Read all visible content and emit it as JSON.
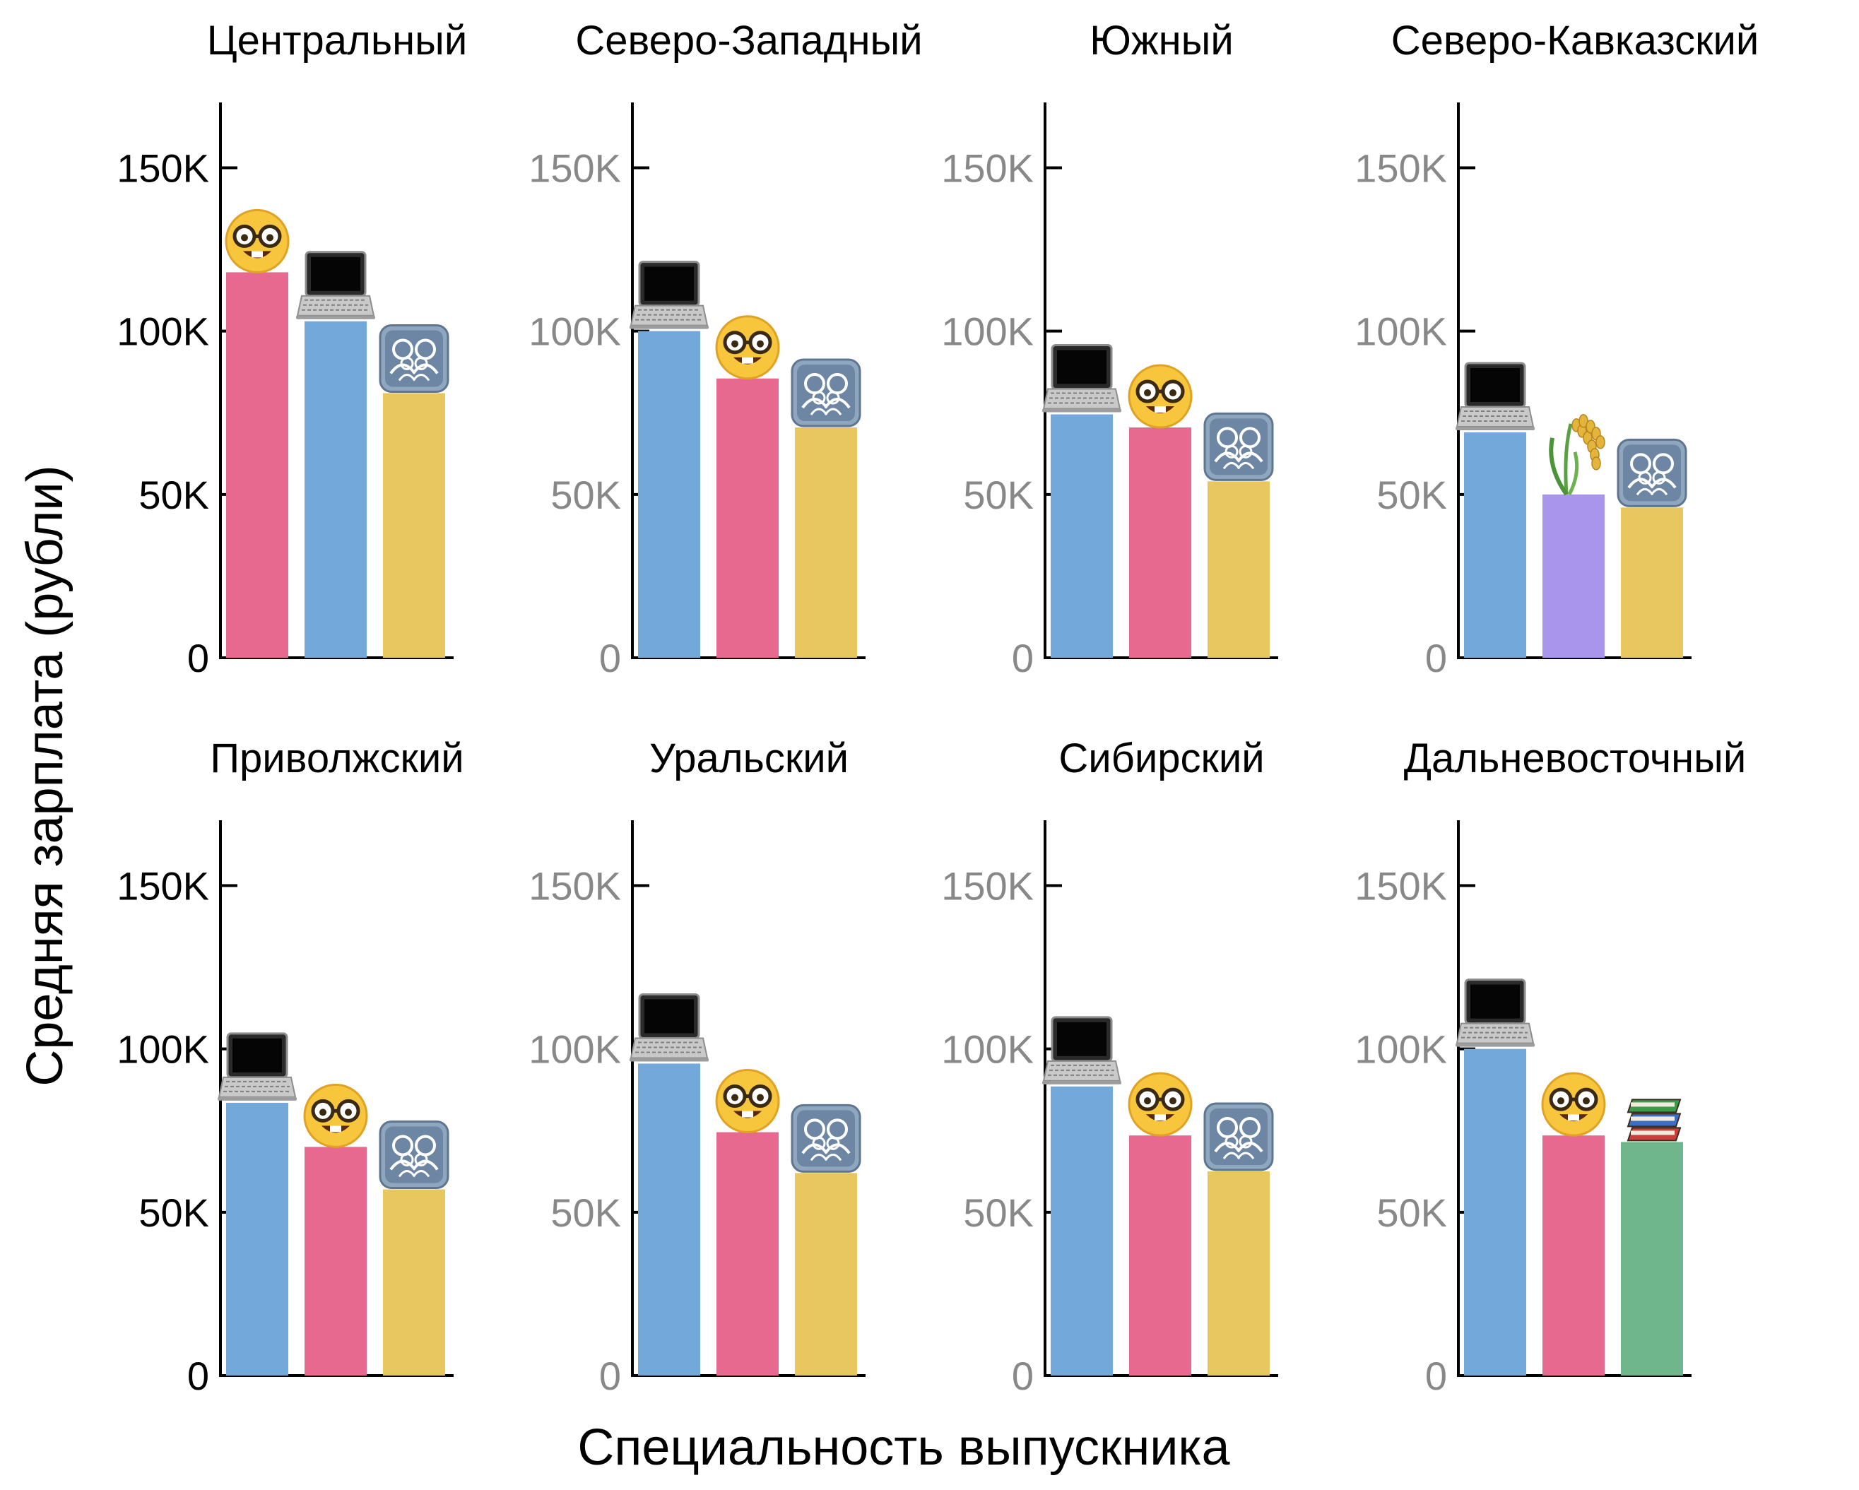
{
  "chart_data": {
    "type": "bar",
    "ylabel": "Средняя зарплата (рубли)",
    "xlabel": "Специальность выпускника",
    "ylim": [
      0,
      170000
    ],
    "yticks": [
      0,
      50000,
      100000,
      150000
    ],
    "ytick_labels": [
      "0",
      "50K",
      "100K",
      "150K"
    ],
    "legend": [
      {
        "category": "it",
        "icon": "laptop-icon",
        "color": "#72a8da"
      },
      {
        "category": "nerd",
        "icon": "nerd-face-icon",
        "color": "#e8698f"
      },
      {
        "category": "social",
        "icon": "people-icon",
        "color": "#e8c660"
      },
      {
        "category": "agriculture",
        "icon": "rice-icon",
        "color": "#a995ec"
      },
      {
        "category": "education",
        "icon": "books-icon",
        "color": "#6fb68c"
      }
    ],
    "panels": [
      {
        "title": "Центральный",
        "bars": [
          {
            "category": "nerd",
            "value": 118000
          },
          {
            "category": "it",
            "value": 103000
          },
          {
            "category": "social",
            "value": 81000
          }
        ]
      },
      {
        "title": "Северо-Западный",
        "bars": [
          {
            "category": "it",
            "value": 100000
          },
          {
            "category": "nerd",
            "value": 85500
          },
          {
            "category": "social",
            "value": 70500
          }
        ]
      },
      {
        "title": "Южный",
        "bars": [
          {
            "category": "it",
            "value": 74500
          },
          {
            "category": "nerd",
            "value": 70500
          },
          {
            "category": "social",
            "value": 54000
          }
        ]
      },
      {
        "title": "Северо-Кавказский",
        "bars": [
          {
            "category": "it",
            "value": 69000
          },
          {
            "category": "agriculture",
            "value": 50000
          },
          {
            "category": "social",
            "value": 46000
          }
        ]
      },
      {
        "title": "Приволжский",
        "bars": [
          {
            "category": "it",
            "value": 83500
          },
          {
            "category": "nerd",
            "value": 70000
          },
          {
            "category": "social",
            "value": 57000
          }
        ]
      },
      {
        "title": "Уральский",
        "bars": [
          {
            "category": "it",
            "value": 95500
          },
          {
            "category": "nerd",
            "value": 74500
          },
          {
            "category": "social",
            "value": 62000
          }
        ]
      },
      {
        "title": "Сибирский",
        "bars": [
          {
            "category": "it",
            "value": 88500
          },
          {
            "category": "nerd",
            "value": 73500
          },
          {
            "category": "social",
            "value": 62500
          }
        ]
      },
      {
        "title": "Дальневосточный",
        "bars": [
          {
            "category": "it",
            "value": 100000
          },
          {
            "category": "nerd",
            "value": 73500
          },
          {
            "category": "education",
            "value": 71500
          }
        ]
      }
    ]
  }
}
